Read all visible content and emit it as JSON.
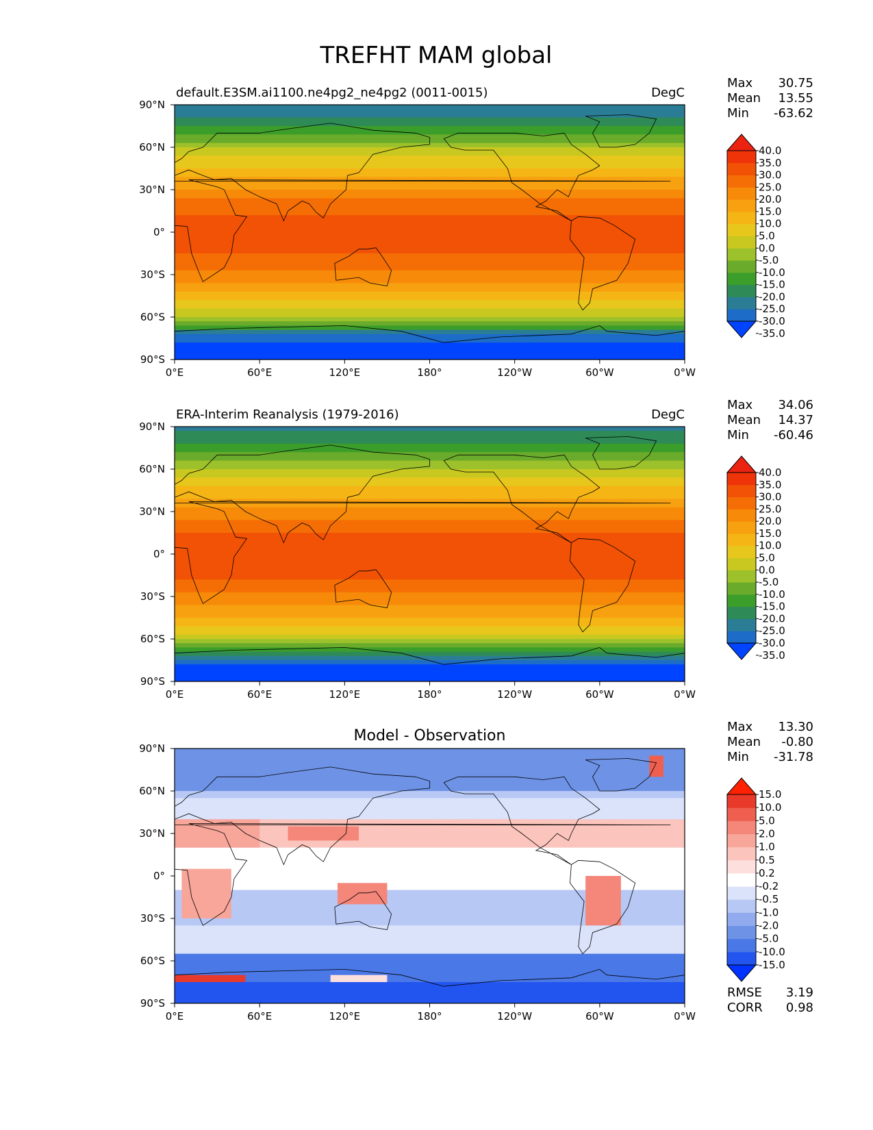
{
  "figure_title": "TREFHT MAM global",
  "chart_data": [
    {
      "type": "heatmap",
      "panel": "test",
      "left_title": "default.E3SM.ai1100.ne4pg2_ne4pg2 (0011-0015)",
      "right_title": "DegC",
      "center_title": "",
      "x_ticks": [
        "0°E",
        "60°E",
        "120°E",
        "180°",
        "120°W",
        "60°W",
        "0°W"
      ],
      "y_ticks": [
        "90°N",
        "60°N",
        "30°N",
        "0°",
        "30°S",
        "60°S",
        "90°S"
      ],
      "xlim": [
        0,
        360
      ],
      "ylim": [
        -90,
        90
      ],
      "stats": [
        {
          "label": "Max",
          "value": "30.75"
        },
        {
          "label": "Mean",
          "value": "13.55"
        },
        {
          "label": "Min",
          "value": "-63.62"
        }
      ],
      "colorbar_labels": [
        "40.0",
        "35.0",
        "30.0",
        "25.0",
        "20.0",
        "15.0",
        "10.0",
        "5.0",
        "0.0",
        "-5.0",
        "-10.0",
        "-15.0",
        "-20.0",
        "-25.0",
        "-30.0",
        "-35.0"
      ],
      "colorbar_colors": [
        "#0044ff",
        "#1d6cc8",
        "#2b7d96",
        "#2e8b57",
        "#3c9e2a",
        "#6aab2b",
        "#9cc12b",
        "#c8c820",
        "#e8c71c",
        "#f5b515",
        "#f7a010",
        "#f78a08",
        "#f56e05",
        "#f25205",
        "#ee3408",
        "#ec2311"
      ],
      "extend": "both",
      "global_mean": 13.55,
      "zonal_profile": [
        [
          -90,
          -45
        ],
        [
          -80,
          -40
        ],
        [
          -70,
          -25
        ],
        [
          -60,
          -5
        ],
        [
          -50,
          4
        ],
        [
          -40,
          12
        ],
        [
          -30,
          18
        ],
        [
          -20,
          24
        ],
        [
          -10,
          26
        ],
        [
          0,
          26
        ],
        [
          10,
          26
        ],
        [
          20,
          22
        ],
        [
          30,
          16
        ],
        [
          40,
          9
        ],
        [
          50,
          2
        ],
        [
          60,
          -6
        ],
        [
          70,
          -16
        ],
        [
          80,
          -25
        ],
        [
          90,
          -30
        ]
      ]
    },
    {
      "type": "heatmap",
      "panel": "reference",
      "left_title": "ERA-Interim Reanalysis (1979-2016)",
      "right_title": "DegC",
      "center_title": "",
      "x_ticks": [
        "0°E",
        "60°E",
        "120°E",
        "180°",
        "120°W",
        "60°W",
        "0°W"
      ],
      "y_ticks": [
        "90°N",
        "60°N",
        "30°N",
        "0°",
        "30°S",
        "60°S",
        "90°S"
      ],
      "xlim": [
        0,
        360
      ],
      "ylim": [
        -90,
        90
      ],
      "stats": [
        {
          "label": "Max",
          "value": "34.06"
        },
        {
          "label": "Mean",
          "value": "14.37"
        },
        {
          "label": "Min",
          "value": "-60.46"
        }
      ],
      "colorbar_labels": [
        "40.0",
        "35.0",
        "30.0",
        "25.0",
        "20.0",
        "15.0",
        "10.0",
        "5.0",
        "0.0",
        "-5.0",
        "-10.0",
        "-15.0",
        "-20.0",
        "-25.0",
        "-30.0",
        "-35.0"
      ],
      "colorbar_colors": [
        "#0044ff",
        "#1d6cc8",
        "#2b7d96",
        "#2e8b57",
        "#3c9e2a",
        "#6aab2b",
        "#9cc12b",
        "#c8c820",
        "#e8c71c",
        "#f5b515",
        "#f7a010",
        "#f78a08",
        "#f56e05",
        "#f25205",
        "#ee3408",
        "#ec2311"
      ],
      "extend": "both",
      "global_mean": 14.37,
      "zonal_profile": [
        [
          -90,
          -42
        ],
        [
          -80,
          -38
        ],
        [
          -70,
          -22
        ],
        [
          -60,
          -4
        ],
        [
          -50,
          5
        ],
        [
          -40,
          13
        ],
        [
          -30,
          19
        ],
        [
          -20,
          24
        ],
        [
          -10,
          27
        ],
        [
          0,
          27
        ],
        [
          10,
          27
        ],
        [
          20,
          23
        ],
        [
          30,
          17
        ],
        [
          40,
          10
        ],
        [
          50,
          3
        ],
        [
          60,
          -5
        ],
        [
          70,
          -14
        ],
        [
          80,
          -22
        ],
        [
          90,
          -26
        ]
      ]
    },
    {
      "type": "heatmap",
      "panel": "difference",
      "left_title": "",
      "right_title": "",
      "center_title": "Model - Observation",
      "x_ticks": [
        "0°E",
        "60°E",
        "120°E",
        "180°",
        "120°W",
        "60°W",
        "0°W"
      ],
      "y_ticks": [
        "90°N",
        "60°N",
        "30°N",
        "0°",
        "30°S",
        "60°S",
        "90°S"
      ],
      "xlim": [
        0,
        360
      ],
      "ylim": [
        -90,
        90
      ],
      "stats": [
        {
          "label": "Max",
          "value": "13.30"
        },
        {
          "label": "Mean",
          "value": "-0.80"
        },
        {
          "label": "Min",
          "value": "-31.78"
        }
      ],
      "extra_stats": [
        {
          "label": "RMSE",
          "value": "3.19"
        },
        {
          "label": "CORR",
          "value": "0.98"
        }
      ],
      "colorbar_labels": [
        "15.0",
        "10.0",
        "5.0",
        "2.0",
        "1.0",
        "0.5",
        "0.2",
        "-0.2",
        "-0.5",
        "-1.0",
        "-2.0",
        "-5.0",
        "-10.0",
        "-15.0"
      ],
      "colorbar_colors": [
        "#0033ff",
        "#2255f0",
        "#4a78e6",
        "#6e93e6",
        "#92abee",
        "#b7c8f4",
        "#dbe3fa",
        "#ffffff",
        "#fde0dd",
        "#fbc4bc",
        "#f8a59a",
        "#f4867a",
        "#ef5f4f",
        "#e8392a",
        "#ff2200"
      ],
      "extend": "both",
      "global_mean": -0.8
    }
  ]
}
